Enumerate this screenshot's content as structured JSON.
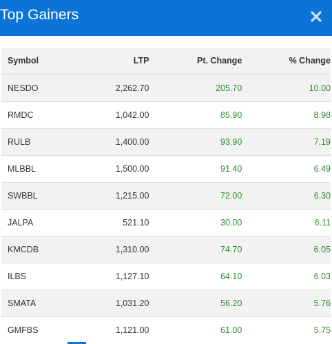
{
  "header": {
    "title": "Top Gainers",
    "close_icon": "close-icon",
    "accent_color": "#0c74d6"
  },
  "table": {
    "columns": [
      "Symbol",
      "LTP",
      "Pt. Change",
      "% Change"
    ],
    "positive_color": "#2f8a2f",
    "rows": [
      {
        "symbol": "NESDO",
        "ltp": "2,262.70",
        "pt_change": "205.70",
        "pct_change": "10.00"
      },
      {
        "symbol": "RMDC",
        "ltp": "1,042.00",
        "pt_change": "85.90",
        "pct_change": "8.98"
      },
      {
        "symbol": "RULB",
        "ltp": "1,400.00",
        "pt_change": "93.90",
        "pct_change": "7.19"
      },
      {
        "symbol": "MLBBL",
        "ltp": "1,500.00",
        "pt_change": "91.40",
        "pct_change": "6.49"
      },
      {
        "symbol": "SWBBL",
        "ltp": "1,215.00",
        "pt_change": "72.00",
        "pct_change": "6.30"
      },
      {
        "symbol": "JALPA",
        "ltp": "521.10",
        "pt_change": "30.00",
        "pct_change": "6.11"
      },
      {
        "symbol": "KMCDB",
        "ltp": "1,310.00",
        "pt_change": "74.70",
        "pct_change": "6.05"
      },
      {
        "symbol": "ILBS",
        "ltp": "1,127.10",
        "pt_change": "64.10",
        "pct_change": "6.03"
      },
      {
        "symbol": "SMATA",
        "ltp": "1,031.20",
        "pt_change": "56.20",
        "pct_change": "5.76"
      },
      {
        "symbol": "GMFBS",
        "ltp": "1,121.00",
        "pt_change": "61.00",
        "pct_change": "5.75"
      }
    ]
  }
}
